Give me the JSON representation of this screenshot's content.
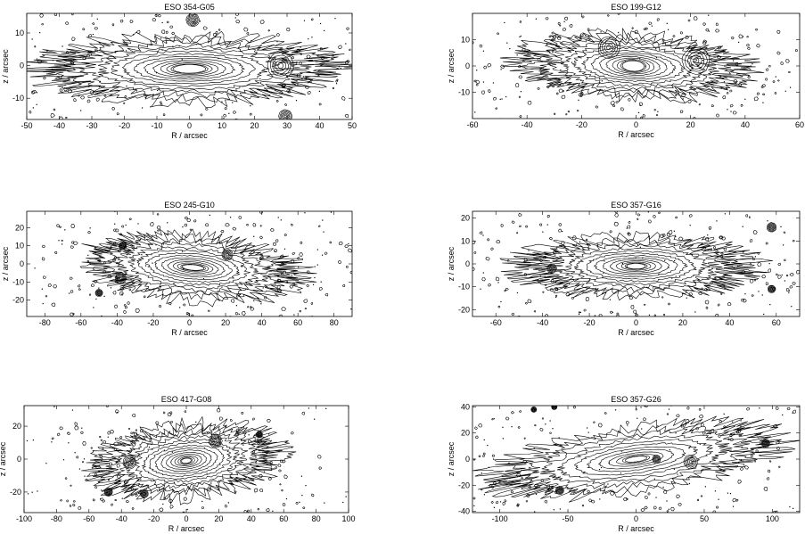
{
  "chart_data": [
    {
      "type": "contour",
      "title": "ESO 354-G05",
      "xlabel": "R  /  arcsec",
      "ylabel": "z  /  arcsec",
      "xlim": [
        -50,
        50
      ],
      "ylim": [
        -16.5,
        16
      ],
      "xticks": [
        -50,
        -40,
        -30,
        -20,
        -10,
        0,
        10,
        20,
        30,
        40,
        50
      ],
      "yticks": [
        -10,
        0,
        10
      ],
      "sources": [
        {
          "kind": "galaxy",
          "x": 0,
          "z": -1,
          "a": 45,
          "b": 10,
          "a_in": 5,
          "b_in": 1.3,
          "levels": 14,
          "tilt": 0
        },
        {
          "kind": "star",
          "x": 1,
          "z": 14,
          "r": 2
        },
        {
          "kind": "star",
          "x": 29.5,
          "z": -15.5,
          "r": 2
        },
        {
          "kind": "knot",
          "x": 28,
          "z": 0,
          "r": 4
        }
      ]
    },
    {
      "type": "contour",
      "title": "ESO 199-G12",
      "xlabel": "R  /  arcsec",
      "ylabel": "z  /  arcsec",
      "xlim": [
        -60,
        60
      ],
      "ylim": [
        -20,
        20
      ],
      "xticks": [
        -60,
        -40,
        -20,
        0,
        20,
        40,
        60
      ],
      "yticks": [
        -10,
        0,
        10
      ],
      "sources": [
        {
          "kind": "galaxy",
          "x": -1,
          "z": 0,
          "a": 42,
          "b": 12,
          "a_in": 4,
          "b_in": 2,
          "levels": 14,
          "tilt": -3
        },
        {
          "kind": "knot",
          "x": -10,
          "z": 7,
          "r": 4
        },
        {
          "kind": "knot",
          "x": 22,
          "z": 2,
          "r": 5
        }
      ]
    },
    {
      "type": "contour",
      "title": "ESO 245-G10",
      "xlabel": "R  /  arcsec",
      "ylabel": "z  /  arcsec",
      "xlim": [
        -90,
        90
      ],
      "ylim": [
        -29,
        29
      ],
      "xticks": [
        -80,
        -60,
        -40,
        -20,
        0,
        20,
        40,
        60,
        80
      ],
      "yticks": [
        -20,
        -10,
        0,
        10,
        20
      ],
      "sources": [
        {
          "kind": "galaxy",
          "x": 2,
          "z": -2,
          "a": 58,
          "b": 18,
          "a_in": 6,
          "b_in": 1.5,
          "levels": 14,
          "tilt": -5
        },
        {
          "kind": "star",
          "x": -38,
          "z": -8,
          "r": 3
        },
        {
          "kind": "star",
          "x": -37,
          "z": 10,
          "r": 2
        },
        {
          "kind": "star",
          "x": -50,
          "z": -16,
          "r": 2
        },
        {
          "kind": "knot",
          "x": 21,
          "z": 5,
          "r": 3
        }
      ]
    },
    {
      "type": "contour",
      "title": "ESO 357-G16",
      "xlabel": "R  /  arcsec",
      "ylabel": "z  /  arcsec",
      "xlim": [
        -70,
        70
      ],
      "ylim": [
        -23,
        23
      ],
      "xticks": [
        -60,
        -40,
        -20,
        0,
        20,
        40,
        60
      ],
      "yticks": [
        -20,
        -10,
        0,
        10,
        20
      ],
      "sources": [
        {
          "kind": "galaxy",
          "x": 0,
          "z": -1,
          "a": 50,
          "b": 13,
          "a_in": 4,
          "b_in": 1.2,
          "levels": 14,
          "tilt": 0
        },
        {
          "kind": "star",
          "x": 58,
          "z": 16,
          "r": 2
        },
        {
          "kind": "star",
          "x": 58,
          "z": -11,
          "r": 1.6
        },
        {
          "kind": "knot",
          "x": -36,
          "z": -2,
          "r": 2
        }
      ]
    },
    {
      "type": "contour",
      "title": "ESO 417-G08",
      "xlabel": "R  /  arcsec",
      "ylabel": "z  /  arcsec",
      "xlim": [
        -100,
        100
      ],
      "ylim": [
        -32.5,
        32.5
      ],
      "xticks": [
        -100,
        -80,
        -60,
        -40,
        -20,
        0,
        20,
        40,
        60,
        80,
        100
      ],
      "yticks": [
        -20,
        0,
        20
      ],
      "sources": [
        {
          "kind": "galaxy",
          "x": 0,
          "z": -1,
          "a": 57,
          "b": 22,
          "a_in": 3,
          "b_in": 1.5,
          "levels": 16,
          "tilt": 6
        },
        {
          "kind": "star",
          "x": 18,
          "z": 11,
          "r": 4
        },
        {
          "kind": "star",
          "x": -48,
          "z": -20,
          "r": 2.5
        },
        {
          "kind": "star",
          "x": -26,
          "z": -21,
          "r": 2.5
        },
        {
          "kind": "star",
          "x": 45,
          "z": 15,
          "r": 2
        },
        {
          "kind": "knot",
          "x": -35,
          "z": -2,
          "r": 4
        }
      ]
    },
    {
      "type": "contour",
      "title": "ESO 357-G26",
      "xlabel": "R  /  arcsec",
      "ylabel": "z  /  arcsec",
      "xlim": [
        -120,
        120
      ],
      "ylim": [
        -41,
        41
      ],
      "xticks": [
        -100,
        -50,
        0,
        50,
        100
      ],
      "yticks": [
        -40,
        -20,
        0,
        20,
        40
      ],
      "sources": [
        {
          "kind": "galaxy",
          "x": 0,
          "z": 0,
          "a": 105,
          "b": 24,
          "a_in": 8,
          "b_in": 2,
          "levels": 12,
          "tilt": 8
        },
        {
          "kind": "star",
          "x": -56,
          "z": -24,
          "r": 3
        },
        {
          "kind": "star",
          "x": 95,
          "z": 12,
          "r": 3
        },
        {
          "kind": "star",
          "x": -75,
          "z": 38,
          "r": 2
        },
        {
          "kind": "star",
          "x": -60,
          "z": 40,
          "r": 2
        },
        {
          "kind": "knot",
          "x": 40,
          "z": -2,
          "r": 5
        },
        {
          "kind": "knot",
          "x": 15,
          "z": 0,
          "r": 3
        }
      ]
    }
  ]
}
